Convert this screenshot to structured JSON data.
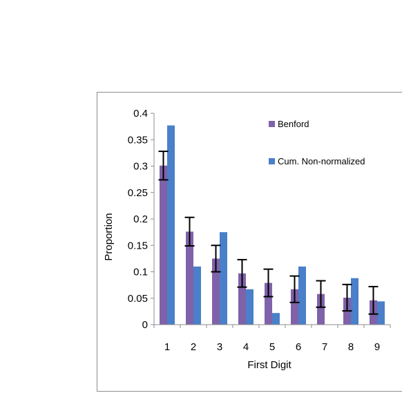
{
  "chart_data": {
    "type": "bar",
    "categories": [
      "1",
      "2",
      "3",
      "4",
      "5",
      "6",
      "7",
      "8",
      "9"
    ],
    "series": [
      {
        "name": "Benford",
        "color": "#7f62a9",
        "values": [
          0.301,
          0.176,
          0.125,
          0.097,
          0.079,
          0.067,
          0.058,
          0.051,
          0.046
        ],
        "error": [
          0.027,
          0.027,
          0.025,
          0.026,
          0.026,
          0.025,
          0.025,
          0.025,
          0.026
        ]
      },
      {
        "name": "Cum. Non-normalized",
        "color": "#4a7fc9",
        "values": [
          0.377,
          0.11,
          0.175,
          0.067,
          0.022,
          0.11,
          0.0,
          0.088,
          0.044
        ]
      }
    ],
    "ylabel": "Proportion",
    "xlabel": "First Digit",
    "ylim": [
      0,
      0.4
    ],
    "yticks": [
      "0",
      "0.05",
      "0.1",
      "0.15",
      "0.2",
      "0.25",
      "0.3",
      "0.35",
      "0.4"
    ],
    "legend_position": "top-right",
    "grid": false
  }
}
